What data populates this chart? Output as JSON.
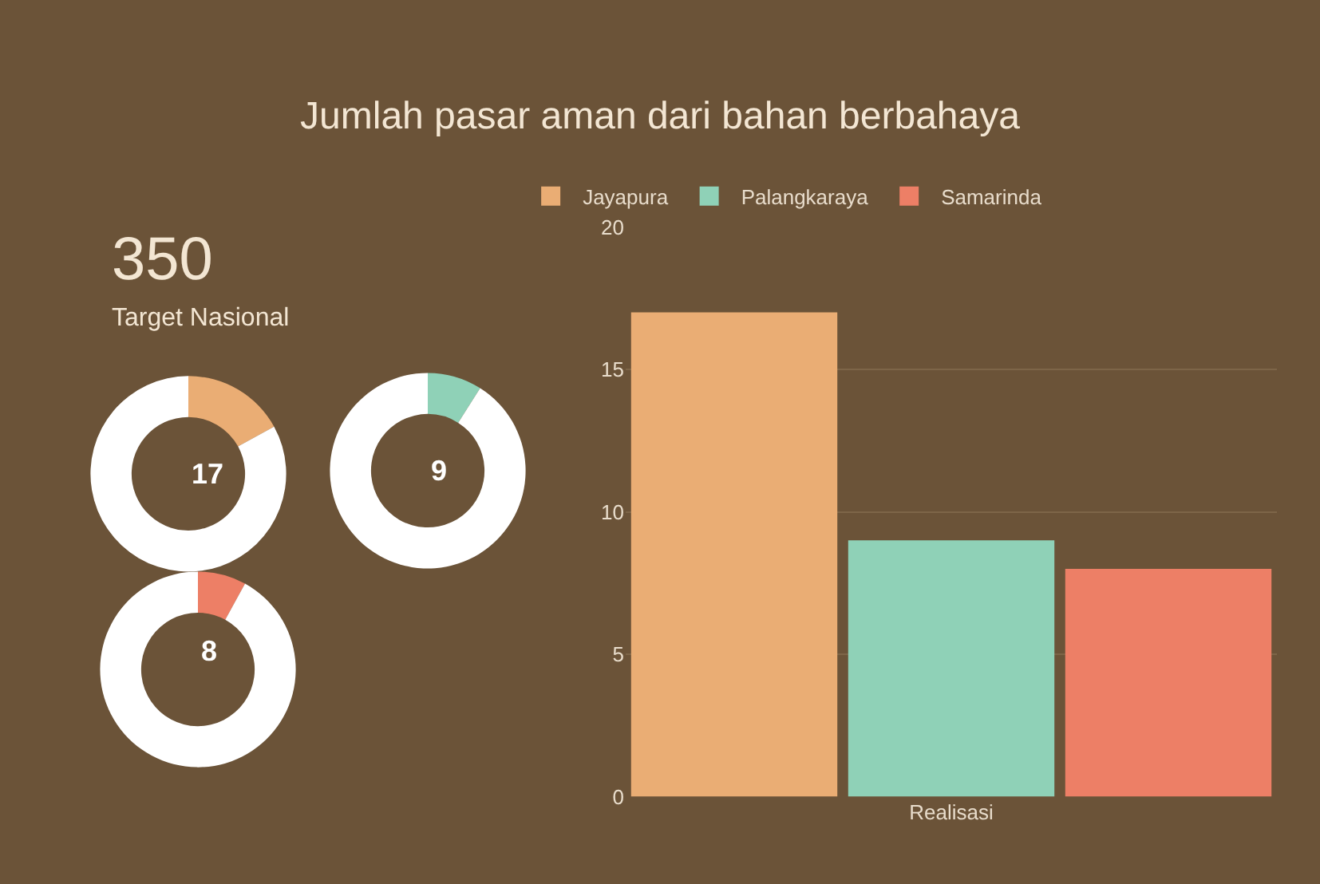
{
  "chart_data": [
    {
      "type": "other",
      "title": "Jumlah pasar aman dari bahan berbahaya",
      "annotations": [
        "350",
        "Target Nasional"
      ]
    },
    {
      "type": "donut",
      "categories": [
        null,
        null
      ],
      "values": [
        17,
        83
      ],
      "colors": [
        "#eaad74",
        "#ffffff"
      ],
      "annotations": [
        "17"
      ]
    },
    {
      "type": "donut",
      "categories": [
        null,
        null
      ],
      "values": [
        9,
        91
      ],
      "colors": [
        "#8fd1b7",
        "#ffffff"
      ],
      "annotations": [
        "9"
      ]
    },
    {
      "type": "donut",
      "categories": [
        null,
        null
      ],
      "values": [
        8,
        92
      ],
      "colors": [
        "#ed7f66",
        "#ffffff"
      ],
      "annotations": [
        "8"
      ]
    },
    {
      "type": "bar",
      "categories": [
        "Realisasi"
      ],
      "series": [
        {
          "name": "Jayapura",
          "color": "#eaad74",
          "values": [
            17
          ]
        },
        {
          "name": "Palangkaraya",
          "color": "#8fd1b7",
          "values": [
            9
          ]
        },
        {
          "name": "Samarinda",
          "color": "#ed7f66",
          "values": [
            8
          ]
        }
      ],
      "ylim": [
        0,
        20
      ],
      "yticks": [
        0,
        5,
        10,
        15,
        20
      ],
      "grid": "y",
      "legend": "top"
    }
  ]
}
